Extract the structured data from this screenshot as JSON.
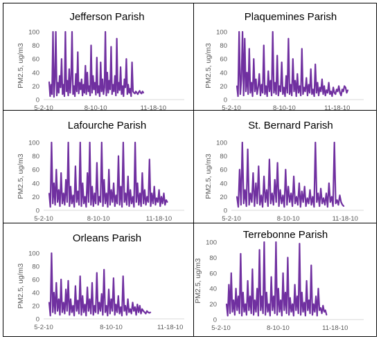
{
  "colors": {
    "series": "#7030A0",
    "axis": "#d9d9d9",
    "text": "#595959"
  },
  "chart_data": [
    {
      "type": "line",
      "title": "Jefferson Parish",
      "ylabel": "PM2.5, ug/m3",
      "ylim": [
        0,
        100
      ],
      "yticks": [
        "0",
        "20",
        "40",
        "60",
        "80",
        "100"
      ],
      "xticks": [
        "5-2-10",
        "8-10-10",
        "11-18-10"
      ],
      "values": [
        26,
        5,
        22,
        8,
        100,
        4,
        30,
        100,
        6,
        25,
        10,
        35,
        18,
        60,
        8,
        22,
        5,
        100,
        12,
        28,
        6,
        45,
        10,
        30,
        100,
        8,
        20,
        5,
        38,
        12,
        70,
        9,
        25,
        15,
        30,
        6,
        22,
        10,
        50,
        8,
        40,
        12,
        20,
        6,
        80,
        10,
        35,
        15,
        25,
        7,
        62,
        10,
        20,
        5,
        55,
        12,
        30,
        8,
        18,
        100,
        6,
        40,
        10,
        28,
        15,
        78,
        8,
        22,
        12,
        35,
        6,
        90,
        10,
        25,
        14,
        48,
        8,
        20,
        5,
        30,
        18,
        60,
        8,
        22,
        10,
        16,
        5,
        55,
        12,
        10,
        9,
        12,
        10,
        8,
        11,
        13,
        10,
        9,
        12,
        10
      ]
    },
    {
      "type": "line",
      "title": "Plaquemines Parish",
      "ylabel": "PM2.5, ug/m3",
      "ylim": [
        0,
        100
      ],
      "yticks": [
        "0",
        "20",
        "40",
        "60",
        "80",
        "100"
      ],
      "xticks": [
        "5-2-10",
        "8-10-10",
        "11-18-10"
      ],
      "values": [
        20,
        5,
        100,
        8,
        30,
        100,
        6,
        90,
        12,
        40,
        8,
        75,
        10,
        25,
        5,
        60,
        12,
        30,
        8,
        18,
        38,
        6,
        22,
        10,
        80,
        8,
        20,
        5,
        42,
        12,
        28,
        6,
        100,
        10,
        25,
        8,
        65,
        6,
        20,
        12,
        55,
        8,
        18,
        5,
        35,
        10,
        90,
        8,
        22,
        6,
        60,
        12,
        28,
        5,
        38,
        10,
        20,
        6,
        75,
        8,
        18,
        12,
        32,
        6,
        22,
        10,
        45,
        8,
        15,
        5,
        52,
        10,
        25,
        6,
        18,
        12,
        30,
        8,
        20,
        6,
        14,
        10,
        25,
        8,
        12,
        5,
        18,
        10,
        8,
        15,
        12,
        20,
        10,
        6,
        15,
        12,
        20,
        18,
        10,
        14
      ]
    },
    {
      "type": "line",
      "title": "Lafourche Parish",
      "ylabel": "PM2.5, ug/m3",
      "ylim": [
        0,
        100
      ],
      "yticks": [
        "0",
        "20",
        "40",
        "60",
        "80",
        "100"
      ],
      "xticks": [
        "5-2-10",
        "8-10-10",
        "11-18-10"
      ],
      "values": [
        25,
        5,
        100,
        10,
        40,
        8,
        60,
        12,
        30,
        6,
        55,
        10,
        25,
        8,
        45,
        12,
        100,
        6,
        35,
        10,
        22,
        5,
        65,
        12,
        28,
        8,
        100,
        6,
        40,
        10,
        20,
        5,
        55,
        12,
        100,
        8,
        35,
        6,
        25,
        10,
        70,
        8,
        20,
        12,
        100,
        6,
        45,
        10,
        25,
        5,
        60,
        8,
        30,
        12,
        40,
        6,
        22,
        10,
        80,
        8,
        35,
        5,
        100,
        12,
        25,
        8,
        50,
        6,
        30,
        10,
        20,
        5,
        100,
        12,
        40,
        8,
        25,
        6,
        55,
        10,
        30,
        8,
        20,
        12,
        75,
        6,
        25,
        10,
        35,
        8,
        18,
        12,
        30,
        6,
        20,
        10,
        25,
        8,
        15,
        12
      ]
    },
    {
      "type": "line",
      "title": "St. Bernard Parish",
      "ylabel": "PM2.5, ug/m3",
      "ylim": [
        0,
        100
      ],
      "yticks": [
        "0",
        "20",
        "40",
        "60",
        "80",
        "100"
      ],
      "xticks": [
        "5-2-10",
        "8-10-10",
        "11-18-10"
      ],
      "values": [
        20,
        5,
        60,
        8,
        100,
        10,
        30,
        6,
        90,
        8,
        25,
        12,
        55,
        6,
        40,
        10,
        65,
        8,
        22,
        5,
        50,
        12,
        30,
        6,
        75,
        10,
        25,
        8,
        45,
        12,
        70,
        6,
        30,
        10,
        22,
        5,
        60,
        8,
        35,
        12,
        25,
        6,
        50,
        10,
        20,
        8,
        40,
        5,
        28,
        12,
        35,
        6,
        18,
        10,
        30,
        8,
        20,
        5,
        100,
        12,
        25,
        6,
        32,
        10,
        18,
        8,
        25,
        5,
        40,
        12,
        20,
        6,
        100,
        10,
        15,
        8,
        22,
        12,
        8,
        6
      ]
    },
    {
      "type": "line",
      "title": "Orleans Parish",
      "ylabel": "PM2.5, ug/m3",
      "ylim": [
        0,
        100
      ],
      "yticks": [
        "0",
        "20",
        "40",
        "60",
        "80",
        "100"
      ],
      "xticks": [
        "5-2-10",
        "8-10-10",
        "11-18-10"
      ],
      "values": [
        25,
        5,
        100,
        10,
        40,
        8,
        55,
        12,
        30,
        6,
        60,
        10,
        25,
        8,
        45,
        12,
        58,
        6,
        30,
        10,
        20,
        5,
        50,
        12,
        28,
        8,
        65,
        6,
        35,
        10,
        22,
        5,
        48,
        12,
        30,
        8,
        55,
        6,
        20,
        10,
        70,
        8,
        25,
        12,
        38,
        6,
        75,
        10,
        20,
        5,
        45,
        8,
        30,
        12,
        62,
        6,
        22,
        10,
        35,
        8,
        18,
        5,
        65,
        12,
        20,
        6,
        30,
        10,
        15,
        8,
        25,
        12,
        18,
        6,
        22,
        10,
        20,
        8,
        15,
        12,
        10,
        8,
        12,
        10,
        9,
        10
      ]
    },
    {
      "type": "line",
      "title": "Terrebonne Parish",
      "ylabel": "PM2.5, ug/m3",
      "ylim": [
        0,
        100
      ],
      "yticks": [
        "0",
        "20",
        "40",
        "60",
        "80",
        "100"
      ],
      "xticks": [
        "5-2-10",
        "8-10-10",
        "11-18-10"
      ],
      "values": [
        20,
        5,
        45,
        8,
        60,
        10,
        25,
        6,
        40,
        12,
        30,
        8,
        85,
        5,
        35,
        10,
        20,
        6,
        50,
        12,
        30,
        8,
        65,
        6,
        25,
        10,
        40,
        5,
        90,
        12,
        30,
        8,
        100,
        6,
        35,
        10,
        20,
        5,
        55,
        12,
        30,
        8,
        100,
        6,
        40,
        10,
        25,
        5,
        60,
        12,
        35,
        8,
        80,
        6,
        28,
        10,
        20,
        5,
        45,
        12,
        30,
        8,
        98,
        6,
        35,
        10,
        22,
        5,
        50,
        12,
        25,
        8,
        70,
        6,
        20,
        10,
        30,
        5,
        40,
        12,
        15,
        8,
        18,
        10,
        12,
        6
      ]
    }
  ]
}
